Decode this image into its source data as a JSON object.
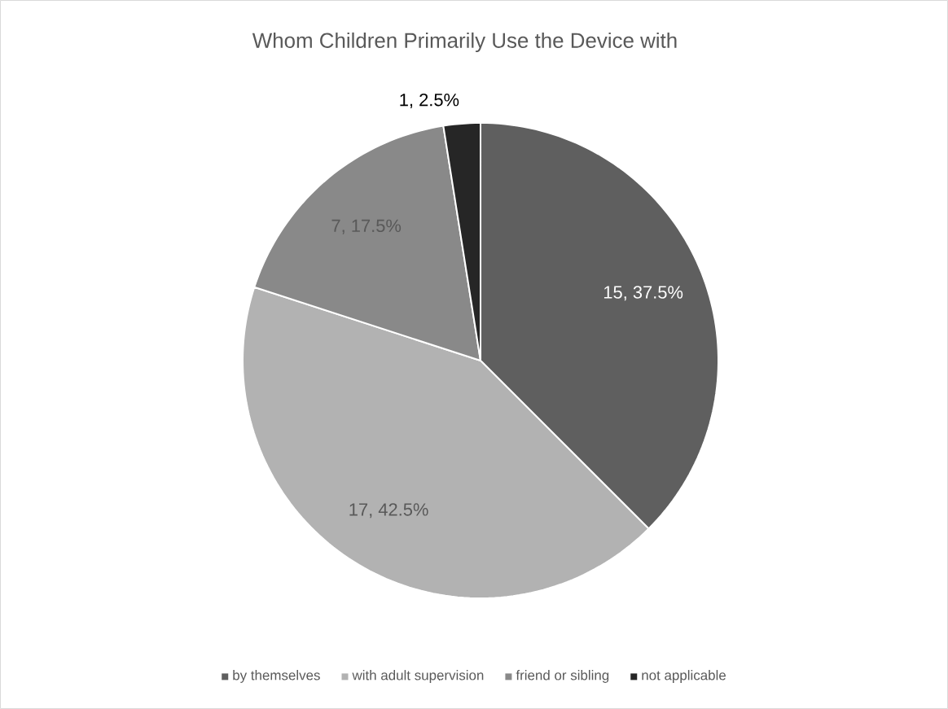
{
  "chart_data": {
    "type": "pie",
    "title": "Whom Children Primarily Use the Device with",
    "categories": [
      "by themselves",
      "with adult supervision",
      "friend or sibling",
      "not applicable"
    ],
    "values": [
      15,
      17,
      7,
      1
    ],
    "colors": [
      "#5f5f5f",
      "#b2b2b2",
      "#898989",
      "#262626"
    ],
    "value_labels": [
      "15, 37.5%",
      "17, 42.5%",
      "7, 17.5%",
      "1, 2.5%"
    ],
    "legend": "bottom"
  }
}
